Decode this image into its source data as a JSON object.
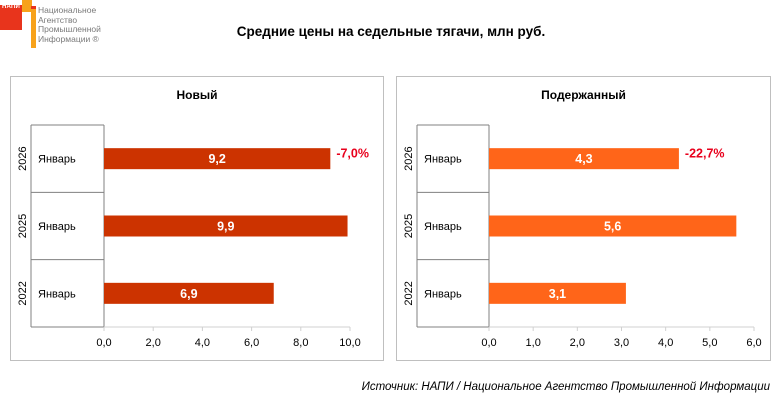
{
  "logo": {
    "short": "НАПИ",
    "lines": [
      "Национальное",
      "Агентство",
      "Промышленной",
      "Информации ®"
    ]
  },
  "title": "Средние цены на седельные тягачи, млн руб.",
  "source": "Источник: НАПИ / Национальное Агентство Промышленной Информации",
  "chart_data": [
    {
      "type": "bar",
      "orientation": "horizontal",
      "title": "Новый",
      "color": "#cc3300",
      "categories": [
        {
          "year": "2026",
          "month": "Январь"
        },
        {
          "year": "2025",
          "month": "Январь"
        },
        {
          "year": "2022",
          "month": "Январь"
        }
      ],
      "values": [
        9.2,
        9.9,
        6.9
      ],
      "value_labels": [
        "9,2",
        "9,9",
        "6,9"
      ],
      "annotations": [
        {
          "index": 0,
          "text": "-7,0%",
          "color": "#e8001c"
        }
      ],
      "xlim": [
        0,
        10
      ],
      "ticks": [
        "0,0",
        "2,0",
        "4,0",
        "6,0",
        "8,0",
        "10,0"
      ],
      "tick_values": [
        0,
        2,
        4,
        6,
        8,
        10
      ],
      "grid": false
    },
    {
      "type": "bar",
      "orientation": "horizontal",
      "title": "Подержанный",
      "color": "#ff6519",
      "categories": [
        {
          "year": "2026",
          "month": "Январь"
        },
        {
          "year": "2025",
          "month": "Январь"
        },
        {
          "year": "2022",
          "month": "Январь"
        }
      ],
      "values": [
        4.3,
        5.6,
        3.1
      ],
      "value_labels": [
        "4,3",
        "5,6",
        "3,1"
      ],
      "annotations": [
        {
          "index": 0,
          "text": "-22,7%",
          "color": "#e8001c"
        }
      ],
      "xlim": [
        0,
        6
      ],
      "ticks": [
        "0,0",
        "1,0",
        "2,0",
        "3,0",
        "4,0",
        "5,0",
        "6,0"
      ],
      "tick_values": [
        0,
        1,
        2,
        3,
        4,
        5,
        6
      ],
      "grid": false
    }
  ]
}
